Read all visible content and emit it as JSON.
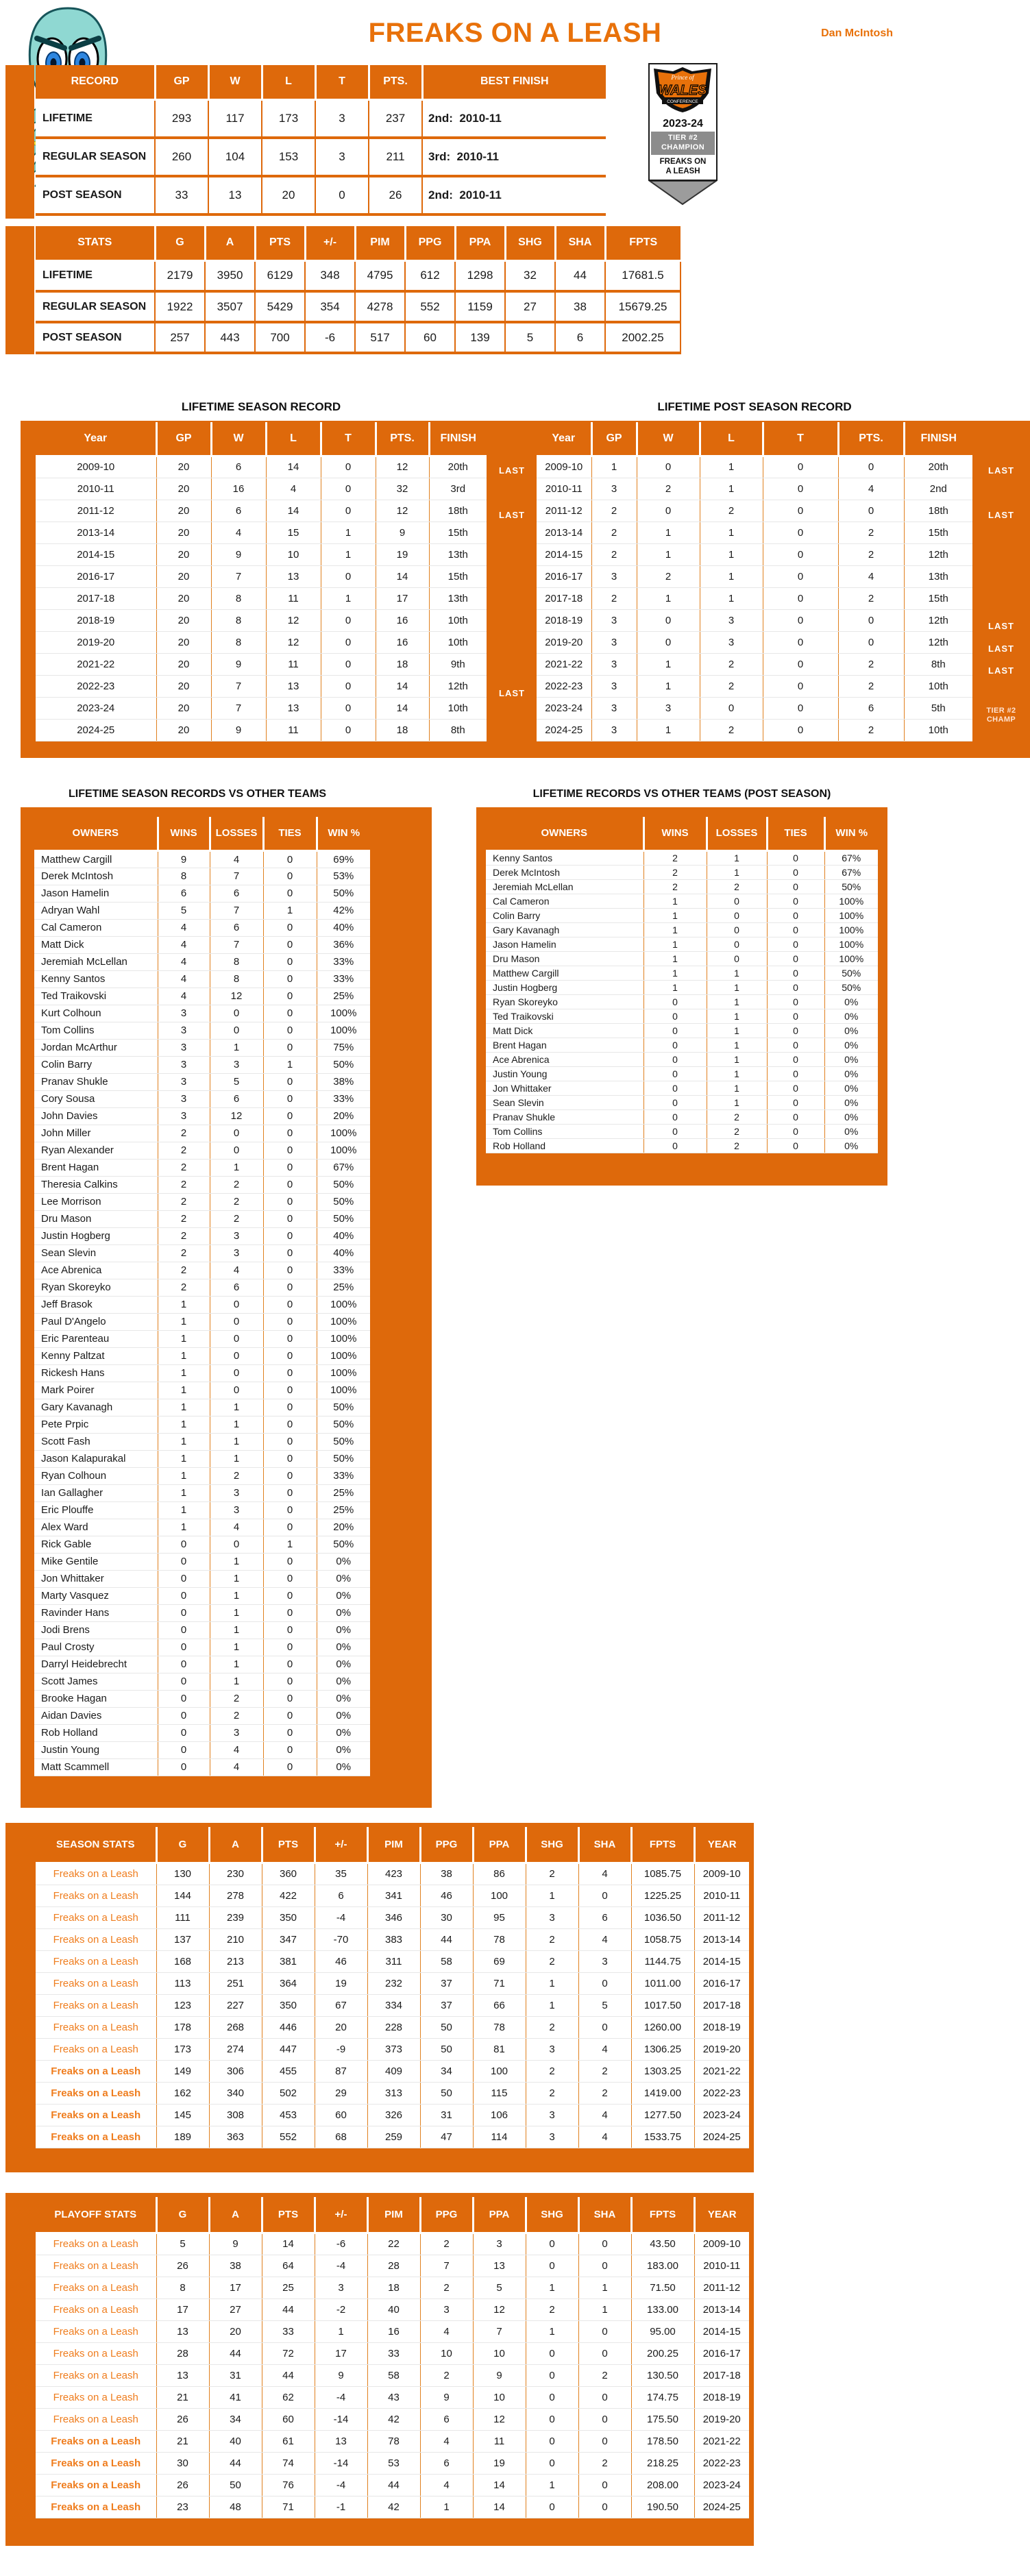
{
  "colors": {
    "accent_orange": "#DE690B",
    "team_text_orange": "#EF7D1E",
    "champ_gray": "#8C8C8C"
  },
  "header": {
    "title": "FREAKS ON A LEASH",
    "owner": "Dan McIntosh"
  },
  "badge": {
    "conference_top": "Prince of",
    "conference_main": "WALES",
    "conference_sub": "CONFERENCE",
    "season": "2023-24",
    "tier_line1": "TIER #2",
    "tier_line2": "CHAMPION",
    "team_line1": "FREAKS ON",
    "team_line2": "A LEASH"
  },
  "record_table": {
    "headers": [
      "RECORD",
      "GP",
      "W",
      "L",
      "T",
      "PTS.",
      "BEST FINISH"
    ],
    "rows": [
      [
        "LIFETIME",
        "293",
        "117",
        "173",
        "3",
        "237",
        "2nd:  2010-11"
      ],
      [
        "REGULAR SEASON",
        "260",
        "104",
        "153",
        "3",
        "211",
        "3rd:  2010-11"
      ],
      [
        "POST SEASON",
        "33",
        "13",
        "20",
        "0",
        "26",
        "2nd:  2010-11"
      ]
    ]
  },
  "stats_table": {
    "headers": [
      "STATS",
      "G",
      "A",
      "PTS",
      "+/-",
      "PIM",
      "PPG",
      "PPA",
      "SHG",
      "SHA",
      "FPTS"
    ],
    "rows": [
      [
        "LIFETIME",
        "2179",
        "3950",
        "6129",
        "348",
        "4795",
        "612",
        "1298",
        "32",
        "44",
        "17681.5"
      ],
      [
        "REGULAR SEASON",
        "1922",
        "3507",
        "5429",
        "354",
        "4278",
        "552",
        "1159",
        "27",
        "38",
        "15679.25"
      ],
      [
        "POST SEASON",
        "257",
        "443",
        "700",
        "-6",
        "517",
        "60",
        "139",
        "5",
        "6",
        "2002.25"
      ]
    ]
  },
  "season_record": {
    "title": "LIFETIME SEASON RECORD",
    "headers": [
      "Year",
      "GP",
      "W",
      "L",
      "T",
      "PTS.",
      "FINISH"
    ],
    "rows": [
      [
        "2009-10",
        "20",
        "6",
        "14",
        "0",
        "12",
        "20th"
      ],
      [
        "2010-11",
        "20",
        "16",
        "4",
        "0",
        "32",
        "3rd"
      ],
      [
        "2011-12",
        "20",
        "6",
        "14",
        "0",
        "12",
        "18th"
      ],
      [
        "2013-14",
        "20",
        "4",
        "15",
        "1",
        "9",
        "15th"
      ],
      [
        "2014-15",
        "20",
        "9",
        "10",
        "1",
        "19",
        "13th"
      ],
      [
        "2016-17",
        "20",
        "7",
        "13",
        "0",
        "14",
        "15th"
      ],
      [
        "2017-18",
        "20",
        "8",
        "11",
        "1",
        "17",
        "13th"
      ],
      [
        "2018-19",
        "20",
        "8",
        "12",
        "0",
        "16",
        "10th"
      ],
      [
        "2019-20",
        "20",
        "8",
        "12",
        "0",
        "16",
        "10th"
      ],
      [
        "2021-22",
        "20",
        "9",
        "11",
        "0",
        "18",
        "9th"
      ],
      [
        "2022-23",
        "20",
        "7",
        "13",
        "0",
        "14",
        "12th"
      ],
      [
        "2023-24",
        "20",
        "7",
        "13",
        "0",
        "14",
        "10th"
      ],
      [
        "2024-25",
        "20",
        "9",
        "11",
        "0",
        "18",
        "8th"
      ]
    ],
    "notes": [
      "LAST",
      "",
      "LAST",
      "",
      "",
      "",
      "",
      "",
      "",
      "",
      "LAST",
      "",
      ""
    ]
  },
  "post_season_record": {
    "title": "LIFETIME POST SEASON RECORD",
    "headers": [
      "Year",
      "GP",
      "W",
      "L",
      "T",
      "PTS.",
      "FINISH"
    ],
    "rows": [
      [
        "2009-10",
        "1",
        "0",
        "1",
        "0",
        "0",
        "20th"
      ],
      [
        "2010-11",
        "3",
        "2",
        "1",
        "0",
        "4",
        "2nd"
      ],
      [
        "2011-12",
        "2",
        "0",
        "2",
        "0",
        "0",
        "18th"
      ],
      [
        "2013-14",
        "2",
        "1",
        "1",
        "0",
        "2",
        "15th"
      ],
      [
        "2014-15",
        "2",
        "1",
        "1",
        "0",
        "2",
        "12th"
      ],
      [
        "2016-17",
        "3",
        "2",
        "1",
        "0",
        "4",
        "13th"
      ],
      [
        "2017-18",
        "2",
        "1",
        "1",
        "0",
        "2",
        "15th"
      ],
      [
        "2018-19",
        "3",
        "0",
        "3",
        "0",
        "0",
        "12th"
      ],
      [
        "2019-20",
        "3",
        "0",
        "3",
        "0",
        "0",
        "12th"
      ],
      [
        "2021-22",
        "3",
        "1",
        "2",
        "0",
        "2",
        "8th"
      ],
      [
        "2022-23",
        "3",
        "1",
        "2",
        "0",
        "2",
        "10th"
      ],
      [
        "2023-24",
        "3",
        "3",
        "0",
        "0",
        "6",
        "5th"
      ],
      [
        "2024-25",
        "3",
        "1",
        "2",
        "0",
        "2",
        "10th"
      ]
    ],
    "notes": [
      "LAST",
      "",
      "LAST",
      "",
      "",
      "",
      "",
      "LAST",
      "LAST",
      "LAST",
      "",
      "TIER #2\nCHAMP",
      ""
    ]
  },
  "vs_teams": {
    "title": "LIFETIME SEASON RECORDS VS OTHER TEAMS",
    "headers": [
      "OWNERS",
      "WINS",
      "LOSSES",
      "TIES",
      "WIN %"
    ],
    "rows": [
      [
        "Matthew Cargill",
        "9",
        "4",
        "0",
        "69%"
      ],
      [
        "Derek McIntosh",
        "8",
        "7",
        "0",
        "53%"
      ],
      [
        "Jason Hamelin",
        "6",
        "6",
        "0",
        "50%"
      ],
      [
        "Adryan Wahl",
        "5",
        "7",
        "1",
        "42%"
      ],
      [
        "Cal Cameron",
        "4",
        "6",
        "0",
        "40%"
      ],
      [
        "Matt Dick",
        "4",
        "7",
        "0",
        "36%"
      ],
      [
        "Jeremiah McLellan",
        "4",
        "8",
        "0",
        "33%"
      ],
      [
        "Kenny Santos",
        "4",
        "8",
        "0",
        "33%"
      ],
      [
        "Ted Traikovski",
        "4",
        "12",
        "0",
        "25%"
      ],
      [
        "Kurt Colhoun",
        "3",
        "0",
        "0",
        "100%"
      ],
      [
        "Tom Collins",
        "3",
        "0",
        "0",
        "100%"
      ],
      [
        "Jordan McArthur",
        "3",
        "1",
        "0",
        "75%"
      ],
      [
        "Colin Barry",
        "3",
        "3",
        "1",
        "50%"
      ],
      [
        "Pranav Shukle",
        "3",
        "5",
        "0",
        "38%"
      ],
      [
        "Cory Sousa",
        "3",
        "6",
        "0",
        "33%"
      ],
      [
        "John Davies",
        "3",
        "12",
        "0",
        "20%"
      ],
      [
        "John Miller",
        "2",
        "0",
        "0",
        "100%"
      ],
      [
        "Ryan Alexander",
        "2",
        "0",
        "0",
        "100%"
      ],
      [
        "Brent Hagan",
        "2",
        "1",
        "0",
        "67%"
      ],
      [
        "Theresia Calkins",
        "2",
        "2",
        "0",
        "50%"
      ],
      [
        "Lee Morrison",
        "2",
        "2",
        "0",
        "50%"
      ],
      [
        "Dru Mason",
        "2",
        "2",
        "0",
        "50%"
      ],
      [
        "Justin Hogberg",
        "2",
        "3",
        "0",
        "40%"
      ],
      [
        "Sean Slevin",
        "2",
        "3",
        "0",
        "40%"
      ],
      [
        "Ace Abrenica",
        "2",
        "4",
        "0",
        "33%"
      ],
      [
        "Ryan Skoreyko",
        "2",
        "6",
        "0",
        "25%"
      ],
      [
        "Jeff Brasok",
        "1",
        "0",
        "0",
        "100%"
      ],
      [
        "Paul D'Angelo",
        "1",
        "0",
        "0",
        "100%"
      ],
      [
        "Eric Parenteau",
        "1",
        "0",
        "0",
        "100%"
      ],
      [
        "Kenny Paltzat",
        "1",
        "0",
        "0",
        "100%"
      ],
      [
        "Rickesh Hans",
        "1",
        "0",
        "0",
        "100%"
      ],
      [
        "Mark Poirer",
        "1",
        "0",
        "0",
        "100%"
      ],
      [
        "Gary Kavanagh",
        "1",
        "1",
        "0",
        "50%"
      ],
      [
        "Pete Prpic",
        "1",
        "1",
        "0",
        "50%"
      ],
      [
        "Scott Fash",
        "1",
        "1",
        "0",
        "50%"
      ],
      [
        "Jason Kalapurakal",
        "1",
        "1",
        "0",
        "50%"
      ],
      [
        "Ryan Colhoun",
        "1",
        "2",
        "0",
        "33%"
      ],
      [
        "Ian Gallagher",
        "1",
        "3",
        "0",
        "25%"
      ],
      [
        "Eric Plouffe",
        "1",
        "3",
        "0",
        "25%"
      ],
      [
        "Alex Ward",
        "1",
        "4",
        "0",
        "20%"
      ],
      [
        "Rick Gable",
        "0",
        "0",
        "1",
        "50%"
      ],
      [
        "Mike Gentile",
        "0",
        "1",
        "0",
        "0%"
      ],
      [
        "Jon Whittaker",
        "0",
        "1",
        "0",
        "0%"
      ],
      [
        "Marty Vasquez",
        "0",
        "1",
        "0",
        "0%"
      ],
      [
        "Ravinder Hans",
        "0",
        "1",
        "0",
        "0%"
      ],
      [
        "Jodi Brens",
        "0",
        "1",
        "0",
        "0%"
      ],
      [
        "Paul Crosty",
        "0",
        "1",
        "0",
        "0%"
      ],
      [
        "Darryl Heidebrecht",
        "0",
        "1",
        "0",
        "0%"
      ],
      [
        "Scott James",
        "0",
        "1",
        "0",
        "0%"
      ],
      [
        "Brooke Hagan",
        "0",
        "2",
        "0",
        "0%"
      ],
      [
        "Aidan Davies",
        "0",
        "2",
        "0",
        "0%"
      ],
      [
        "Rob Holland",
        "0",
        "3",
        "0",
        "0%"
      ],
      [
        "Justin Young",
        "0",
        "4",
        "0",
        "0%"
      ],
      [
        "Matt Scammell",
        "0",
        "4",
        "0",
        "0%"
      ]
    ]
  },
  "vs_teams_post": {
    "title": "LIFETIME RECORDS VS OTHER TEAMS (POST SEASON)",
    "headers": [
      "OWNERS",
      "WINS",
      "LOSSES",
      "TIES",
      "WIN %"
    ],
    "rows": [
      [
        "Kenny Santos",
        "2",
        "1",
        "0",
        "67%"
      ],
      [
        "Derek McIntosh",
        "2",
        "1",
        "0",
        "67%"
      ],
      [
        "Jeremiah McLellan",
        "2",
        "2",
        "0",
        "50%"
      ],
      [
        "Cal Cameron",
        "1",
        "0",
        "0",
        "100%"
      ],
      [
        "Colin Barry",
        "1",
        "0",
        "0",
        "100%"
      ],
      [
        "Gary Kavanagh",
        "1",
        "0",
        "0",
        "100%"
      ],
      [
        "Jason Hamelin",
        "1",
        "0",
        "0",
        "100%"
      ],
      [
        "Dru Mason",
        "1",
        "0",
        "0",
        "100%"
      ],
      [
        "Matthew Cargill",
        "1",
        "1",
        "0",
        "50%"
      ],
      [
        "Justin Hogberg",
        "1",
        "1",
        "0",
        "50%"
      ],
      [
        "Ryan Skoreyko",
        "0",
        "1",
        "0",
        "0%"
      ],
      [
        "Ted Traikovski",
        "0",
        "1",
        "0",
        "0%"
      ],
      [
        "Matt Dick",
        "0",
        "1",
        "0",
        "0%"
      ],
      [
        "Brent Hagan",
        "0",
        "1",
        "0",
        "0%"
      ],
      [
        "Ace Abrenica",
        "0",
        "1",
        "0",
        "0%"
      ],
      [
        "Justin Young",
        "0",
        "1",
        "0",
        "0%"
      ],
      [
        "Jon Whittaker",
        "0",
        "1",
        "0",
        "0%"
      ],
      [
        "Sean Slevin",
        "0",
        "1",
        "0",
        "0%"
      ],
      [
        "Pranav Shukle",
        "0",
        "2",
        "0",
        "0%"
      ],
      [
        "Tom Collins",
        "0",
        "2",
        "0",
        "0%"
      ],
      [
        "Rob Holland",
        "0",
        "2",
        "0",
        "0%"
      ]
    ]
  },
  "season_stats": {
    "headers": [
      "SEASON STATS",
      "G",
      "A",
      "PTS",
      "+/-",
      "PIM",
      "PPG",
      "PPA",
      "SHG",
      "SHA",
      "FPTS",
      "YEAR"
    ],
    "bold_rows": [
      9,
      10,
      11,
      12
    ],
    "rows": [
      [
        "Freaks on a Leash",
        "130",
        "230",
        "360",
        "35",
        "423",
        "38",
        "86",
        "2",
        "4",
        "1085.75",
        "2009-10"
      ],
      [
        "Freaks on a Leash",
        "144",
        "278",
        "422",
        "6",
        "341",
        "46",
        "100",
        "1",
        "0",
        "1225.25",
        "2010-11"
      ],
      [
        "Freaks on a Leash",
        "111",
        "239",
        "350",
        "-4",
        "346",
        "30",
        "95",
        "3",
        "6",
        "1036.50",
        "2011-12"
      ],
      [
        "Freaks on a Leash",
        "137",
        "210",
        "347",
        "-70",
        "383",
        "44",
        "78",
        "2",
        "4",
        "1058.75",
        "2013-14"
      ],
      [
        "Freaks on a Leash",
        "168",
        "213",
        "381",
        "46",
        "311",
        "58",
        "69",
        "2",
        "3",
        "1144.75",
        "2014-15"
      ],
      [
        "Freaks on a Leash",
        "113",
        "251",
        "364",
        "19",
        "232",
        "37",
        "71",
        "1",
        "0",
        "1011.00",
        "2016-17"
      ],
      [
        "Freaks on a Leash",
        "123",
        "227",
        "350",
        "67",
        "334",
        "37",
        "66",
        "1",
        "5",
        "1017.50",
        "2017-18"
      ],
      [
        "Freaks on a Leash",
        "178",
        "268",
        "446",
        "20",
        "228",
        "50",
        "78",
        "2",
        "0",
        "1260.00",
        "2018-19"
      ],
      [
        "Freaks on a Leash",
        "173",
        "274",
        "447",
        "-9",
        "373",
        "50",
        "81",
        "3",
        "4",
        "1306.25",
        "2019-20"
      ],
      [
        "Freaks on a Leash",
        "149",
        "306",
        "455",
        "87",
        "409",
        "34",
        "100",
        "2",
        "2",
        "1303.25",
        "2021-22"
      ],
      [
        "Freaks on a Leash",
        "162",
        "340",
        "502",
        "29",
        "313",
        "50",
        "115",
        "2",
        "2",
        "1419.00",
        "2022-23"
      ],
      [
        "Freaks on a Leash",
        "145",
        "308",
        "453",
        "60",
        "326",
        "31",
        "106",
        "3",
        "4",
        "1277.50",
        "2023-24"
      ],
      [
        "Freaks on a Leash",
        "189",
        "363",
        "552",
        "68",
        "259",
        "47",
        "114",
        "3",
        "4",
        "1533.75",
        "2024-25"
      ]
    ]
  },
  "playoff_stats": {
    "headers": [
      "PLAYOFF STATS",
      "G",
      "A",
      "PTS",
      "+/-",
      "PIM",
      "PPG",
      "PPA",
      "SHG",
      "SHA",
      "FPTS",
      "YEAR"
    ],
    "bold_rows": [
      9,
      10,
      11,
      12
    ],
    "rows": [
      [
        "Freaks on a Leash",
        "5",
        "9",
        "14",
        "-6",
        "22",
        "2",
        "3",
        "0",
        "0",
        "43.50",
        "2009-10"
      ],
      [
        "Freaks on a Leash",
        "26",
        "38",
        "64",
        "-4",
        "28",
        "7",
        "13",
        "0",
        "0",
        "183.00",
        "2010-11"
      ],
      [
        "Freaks on a Leash",
        "8",
        "17",
        "25",
        "3",
        "18",
        "2",
        "5",
        "1",
        "1",
        "71.50",
        "2011-12"
      ],
      [
        "Freaks on a Leash",
        "17",
        "27",
        "44",
        "-2",
        "40",
        "3",
        "12",
        "2",
        "1",
        "133.00",
        "2013-14"
      ],
      [
        "Freaks on a Leash",
        "13",
        "20",
        "33",
        "1",
        "16",
        "4",
        "7",
        "1",
        "0",
        "95.00",
        "2014-15"
      ],
      [
        "Freaks on a Leash",
        "28",
        "44",
        "72",
        "17",
        "33",
        "10",
        "10",
        "0",
        "0",
        "200.25",
        "2016-17"
      ],
      [
        "Freaks on a Leash",
        "13",
        "31",
        "44",
        "9",
        "58",
        "2",
        "9",
        "0",
        "2",
        "130.50",
        "2017-18"
      ],
      [
        "Freaks on a Leash",
        "21",
        "41",
        "62",
        "-4",
        "43",
        "9",
        "10",
        "0",
        "0",
        "174.75",
        "2018-19"
      ],
      [
        "Freaks on a Leash",
        "26",
        "34",
        "60",
        "-14",
        "42",
        "6",
        "12",
        "0",
        "0",
        "175.50",
        "2019-20"
      ],
      [
        "Freaks on a Leash",
        "21",
        "40",
        "61",
        "13",
        "78",
        "4",
        "11",
        "0",
        "0",
        "178.50",
        "2021-22"
      ],
      [
        "Freaks on a Leash",
        "30",
        "44",
        "74",
        "-14",
        "53",
        "6",
        "19",
        "0",
        "2",
        "218.25",
        "2022-23"
      ],
      [
        "Freaks on a Leash",
        "26",
        "50",
        "76",
        "-4",
        "44",
        "4",
        "14",
        "1",
        "0",
        "208.00",
        "2023-24"
      ],
      [
        "Freaks on a Leash",
        "23",
        "48",
        "71",
        "-1",
        "42",
        "1",
        "14",
        "0",
        "0",
        "190.50",
        "2024-25"
      ]
    ]
  }
}
